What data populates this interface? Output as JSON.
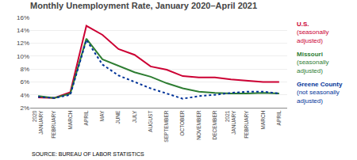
{
  "chart_data": {
    "type": "line",
    "title": "Monthly Unemployment Rate, January 2020–April 2021",
    "source": "SOURCE: BUREAU OF LABOR STATISTICS",
    "categories": [
      "2020\nJANUARY",
      "FEBRUARY",
      "MARCH",
      "APRIL",
      "MAY",
      "JUNE",
      "JULY",
      "AUGUST",
      "SEPTEMBER",
      "OCTOBER",
      "NOVEMBER",
      "DECEMBER",
      "2021\nJANUARY",
      "FEBRUARY",
      "MARCH",
      "APRIL"
    ],
    "series": [
      {
        "name": "U.S.",
        "color": "#cc0033",
        "line_style": "solid",
        "values": [
          3.6,
          3.5,
          4.4,
          14.7,
          13.3,
          11.1,
          10.2,
          8.4,
          7.9,
          6.9,
          6.7,
          6.7,
          6.4,
          6.2,
          6.0,
          6.0
        ]
      },
      {
        "name": "Missouri",
        "color": "#2e7d32",
        "line_style": "solid",
        "values": [
          3.8,
          3.5,
          4.2,
          12.7,
          9.5,
          8.5,
          7.5,
          6.8,
          5.8,
          5.0,
          4.5,
          4.3,
          4.2,
          4.2,
          4.3,
          4.2
        ]
      },
      {
        "name": "Greene County",
        "color": "#003399",
        "line_style": "dotted",
        "values": [
          3.7,
          3.5,
          4.0,
          12.5,
          8.7,
          7.0,
          6.0,
          5.0,
          4.2,
          3.4,
          3.8,
          4.0,
          4.3,
          4.5,
          4.5,
          4.2
        ]
      }
    ],
    "annotations": [
      "(seasonally\nadjusted)",
      "(seasonally\nadjusted)",
      "(not seasonally\nadjusted)"
    ],
    "ylim": [
      2,
      16
    ],
    "yticks": [
      {
        "value": 2,
        "label": "2%"
      },
      {
        "value": 4,
        "label": "4%"
      },
      {
        "value": 6,
        "label": "6%"
      },
      {
        "value": 8,
        "label": "8%"
      },
      {
        "value": 10,
        "label": "10%"
      },
      {
        "value": 12,
        "label": "12%"
      },
      {
        "value": 14,
        "label": "14%"
      },
      {
        "value": 16,
        "label": "16%"
      }
    ],
    "grid": true
  }
}
